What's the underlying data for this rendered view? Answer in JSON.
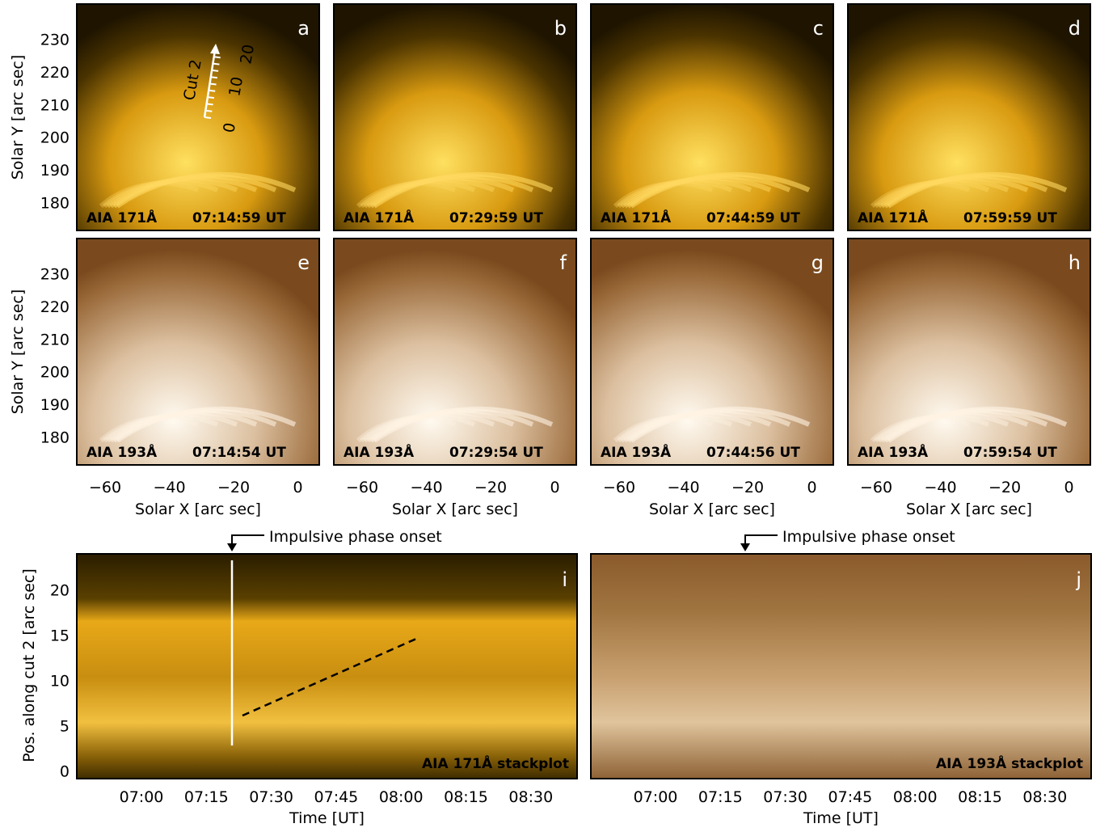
{
  "panels": [
    {
      "letter": "a",
      "instrument": "AIA 171Å",
      "time": "07:14:59 UT"
    },
    {
      "letter": "b",
      "instrument": "AIA 171Å",
      "time": "07:29:59 UT"
    },
    {
      "letter": "c",
      "instrument": "AIA 171Å",
      "time": "07:44:59 UT"
    },
    {
      "letter": "d",
      "instrument": "AIA 171Å",
      "time": "07:59:59 UT"
    },
    {
      "letter": "e",
      "instrument": "AIA 193Å",
      "time": "07:14:54 UT"
    },
    {
      "letter": "f",
      "instrument": "AIA 193Å",
      "time": "07:29:54 UT"
    },
    {
      "letter": "g",
      "instrument": "AIA 193Å",
      "time": "07:44:56 UT"
    },
    {
      "letter": "h",
      "instrument": "AIA 193Å",
      "time": "07:59:54 UT"
    }
  ],
  "image_axes": {
    "y_label": "Solar Y [arc sec]",
    "y_ticks": [
      "230",
      "220",
      "210",
      "200",
      "190",
      "180"
    ],
    "x_label": "Solar X [arc sec]",
    "x_ticks": [
      "−60",
      "−40",
      "−20",
      "0"
    ]
  },
  "cut": {
    "label": "Cut 2",
    "ticks": [
      "0",
      "10",
      "20"
    ]
  },
  "stackplots": [
    {
      "letter": "i",
      "caption": "AIA 171Å   stackplot"
    },
    {
      "letter": "j",
      "caption": "AIA 193Å   stackplot"
    }
  ],
  "stack_axes": {
    "y_label": "Pos. along cut 2 [arc sec]",
    "y_ticks": [
      "0",
      "5",
      "10",
      "15",
      "20"
    ],
    "x_label": "Time [UT]",
    "x_ticks": [
      "07:00",
      "07:15",
      "07:30",
      "07:45",
      "08:00",
      "08:15",
      "08:30"
    ]
  },
  "annotation": "Impulsive phase onset"
}
